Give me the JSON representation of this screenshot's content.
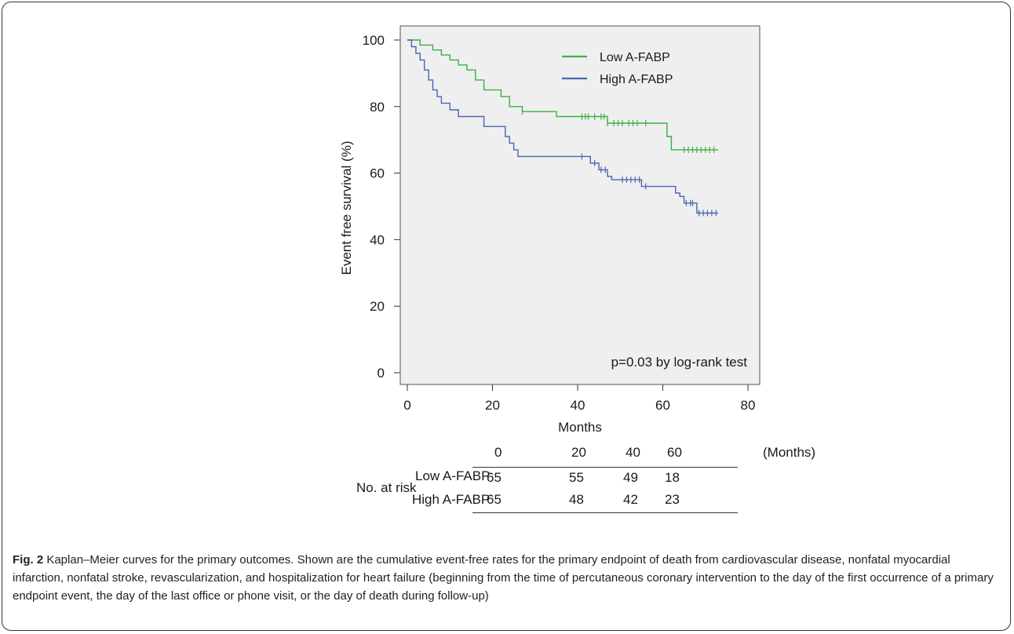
{
  "chart_data": {
    "type": "line",
    "ylabel": "Event free survival (%)",
    "xlabel": "Months",
    "xlim": [
      0,
      80
    ],
    "ylim": [
      0,
      100
    ],
    "xticks": [
      0,
      20,
      40,
      60,
      80
    ],
    "yticks": [
      0,
      20,
      40,
      60,
      80,
      100
    ],
    "grid": false,
    "legend_position": "top-right",
    "annotation": "p=0.03 by log-rank test",
    "series": [
      {
        "name": "Low A-FABP",
        "color": "#3cb043",
        "step_points": [
          [
            0,
            100
          ],
          [
            3,
            98.5
          ],
          [
            6,
            97
          ],
          [
            8,
            95.5
          ],
          [
            10,
            94
          ],
          [
            12,
            92.5
          ],
          [
            14,
            91
          ],
          [
            16,
            88
          ],
          [
            18,
            85
          ],
          [
            22,
            83
          ],
          [
            24,
            80
          ],
          [
            27,
            78.5
          ],
          [
            35,
            77
          ],
          [
            47,
            75
          ],
          [
            60,
            75
          ],
          [
            61,
            71
          ],
          [
            62,
            67
          ],
          [
            73,
            67
          ]
        ],
        "censor_x": [
          27,
          41,
          41.8,
          42.5,
          44,
          45.5,
          46.2,
          47,
          48.5,
          49.5,
          50.5,
          52,
          53,
          54,
          56,
          65,
          66,
          67,
          68,
          69,
          70,
          71,
          72
        ]
      },
      {
        "name": "High A-FABP",
        "color": "#4a66b3",
        "step_points": [
          [
            0,
            100
          ],
          [
            1,
            98
          ],
          [
            2,
            96
          ],
          [
            3,
            94
          ],
          [
            4,
            91
          ],
          [
            5,
            88
          ],
          [
            6,
            85
          ],
          [
            7,
            83
          ],
          [
            8,
            81
          ],
          [
            10,
            79
          ],
          [
            12,
            77
          ],
          [
            17,
            77
          ],
          [
            18,
            74
          ],
          [
            22,
            74
          ],
          [
            23,
            71
          ],
          [
            24,
            69
          ],
          [
            25,
            67
          ],
          [
            26,
            65
          ],
          [
            42,
            65
          ],
          [
            43,
            63
          ],
          [
            45,
            61
          ],
          [
            47,
            59
          ],
          [
            48,
            58
          ],
          [
            54,
            58
          ],
          [
            55,
            56
          ],
          [
            62,
            56
          ],
          [
            63,
            54
          ],
          [
            64,
            53
          ],
          [
            65,
            51
          ],
          [
            67,
            51
          ],
          [
            68,
            48
          ],
          [
            73,
            48
          ]
        ],
        "censor_x": [
          41,
          44,
          45.5,
          46.5,
          50.5,
          51.5,
          52.5,
          53.5,
          54.5,
          56,
          65.5,
          66.5,
          67,
          68.5,
          69.5,
          70.5,
          71.5,
          72.5
        ]
      }
    ]
  },
  "risk_table": {
    "title": "No. at risk",
    "unit": "(Months)",
    "time_points": [
      "0",
      "20",
      "40",
      "60"
    ],
    "rows": [
      {
        "label": "Low A-FABP",
        "values": [
          "65",
          "55",
          "49",
          "18"
        ]
      },
      {
        "label": "High A-FABP",
        "values": [
          "65",
          "48",
          "42",
          "23"
        ]
      }
    ]
  },
  "caption": {
    "label": "Fig. 2",
    "text": " Kaplan–Meier curves for the primary outcomes. Shown are the cumulative event-free rates for the primary endpoint of death from cardiovascular disease, nonfatal myocardial infarction, nonfatal stroke, revascularization, and hospitalization for heart failure (beginning from the time of percutaneous coronary intervention to the day of the first occurrence of a primary endpoint event, the day of the last office or phone visit, or the day of death during follow-up)"
  }
}
